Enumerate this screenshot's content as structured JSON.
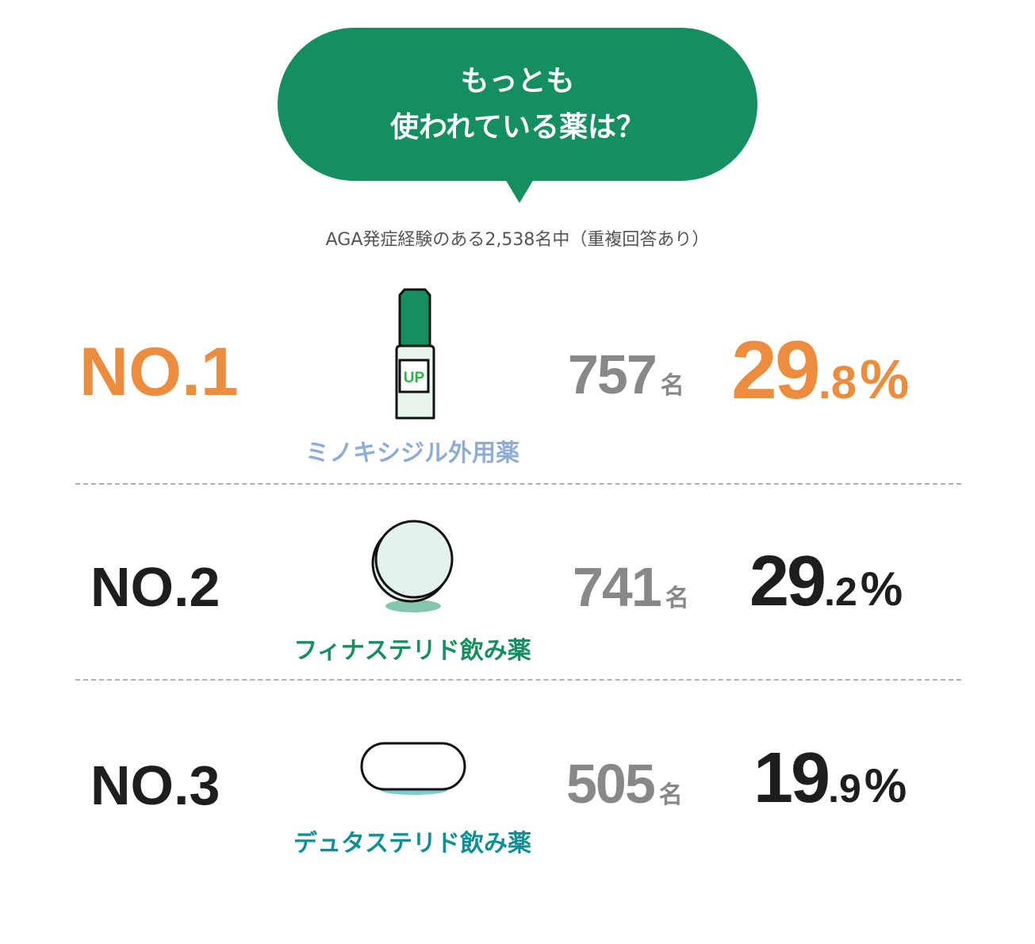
{
  "header": {
    "title_line1": "もっとも",
    "title_line2": "使われている薬は？"
  },
  "subtitle": "AGA発症経験のある2,538名中（重複回答あり）",
  "ranking": [
    {
      "rank": "NO.1",
      "name": "ミノキシジル外用薬",
      "count": "757",
      "count_unit": "名",
      "percent_int": "29",
      "percent_dec": ".8",
      "percent_sign": "%",
      "icon": "lotion-bottle-icon",
      "icon_text": "UP",
      "rank_color": "#ee8c3e",
      "name_color": "#8fadd4"
    },
    {
      "rank": "NO.2",
      "name": "フィナステリド飲み薬",
      "count": "741",
      "count_unit": "名",
      "percent_int": "29",
      "percent_dec": ".2",
      "percent_sign": "%",
      "icon": "round-pill-icon",
      "rank_color": "#1e1e1e",
      "name_color": "#168f60"
    },
    {
      "rank": "NO.3",
      "name": "デュタステリド飲み薬",
      "count": "505",
      "count_unit": "名",
      "percent_int": "19",
      "percent_dec": ".9",
      "percent_sign": "%",
      "icon": "capsule-pill-icon",
      "rank_color": "#1e1e1e",
      "name_color": "#0e8f96"
    }
  ],
  "colors": {
    "brand_green": "#168f60",
    "accent_orange": "#ee8c3e",
    "count_grey": "#888888"
  }
}
